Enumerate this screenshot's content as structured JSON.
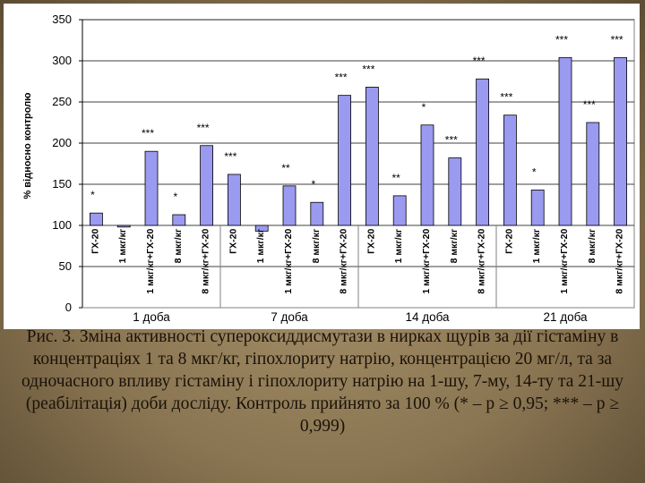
{
  "chart_data": {
    "type": "bar",
    "ylabel": "% відносно контролю",
    "ylim": [
      0,
      350
    ],
    "yticks": [
      0,
      50,
      100,
      150,
      200,
      250,
      300,
      350
    ],
    "bar_color": "#9a9af0",
    "groups": [
      "1 доба",
      "7 доба",
      "14 доба",
      "21 доба"
    ],
    "categories": [
      "ГХ-20",
      "1 мкг/кг",
      "1 мкг/кг+ГХ-20",
      "8 мкг/кг",
      "8 мкг/кг+ГХ-20",
      "ГХ-20",
      "1 мкг/кг",
      "1 мкг/кг+ГХ-20",
      "8 мкг/кг",
      "8 мкг/кг+ГХ-20",
      "ГХ-20",
      "1 мкг/кг",
      "1 мкг/кг+ГХ-20",
      "8 мкг/кг",
      "8 мкг/кг+ГХ-20",
      "ГХ-20",
      "1 мкг/кг",
      "1 мкг/кг+ГХ-20",
      "8 мкг/кг",
      "8 мкг/кг+ГХ-20"
    ],
    "values": [
      115,
      98,
      190,
      113,
      197,
      162,
      93,
      148,
      128,
      258,
      268,
      136,
      222,
      182,
      278,
      234,
      143,
      304,
      225,
      304
    ],
    "annotations": [
      "*",
      "",
      "***",
      "*",
      "***",
      "***",
      "",
      "**",
      "*",
      "***",
      "***",
      "**",
      "*",
      "***",
      "***",
      "***",
      "*",
      "***",
      "***",
      "***"
    ]
  },
  "caption": "Рис. 3. Зміна активності супероксиддисмутази в нирках щурів за дії гістаміну в концентраціях 1 та 8 мкг/кг, гіпохлориту натрію, концентрацією 20 мг/л, та за одночасного впливу гістаміну і гіпохлориту натрію на 1-шу, 7-му, 14-ту та 21-шу (реабілітація) доби досліду. Контроль прийнято за 100 % (* – p ≥ 0,95; *** – p ≥ 0,999)"
}
